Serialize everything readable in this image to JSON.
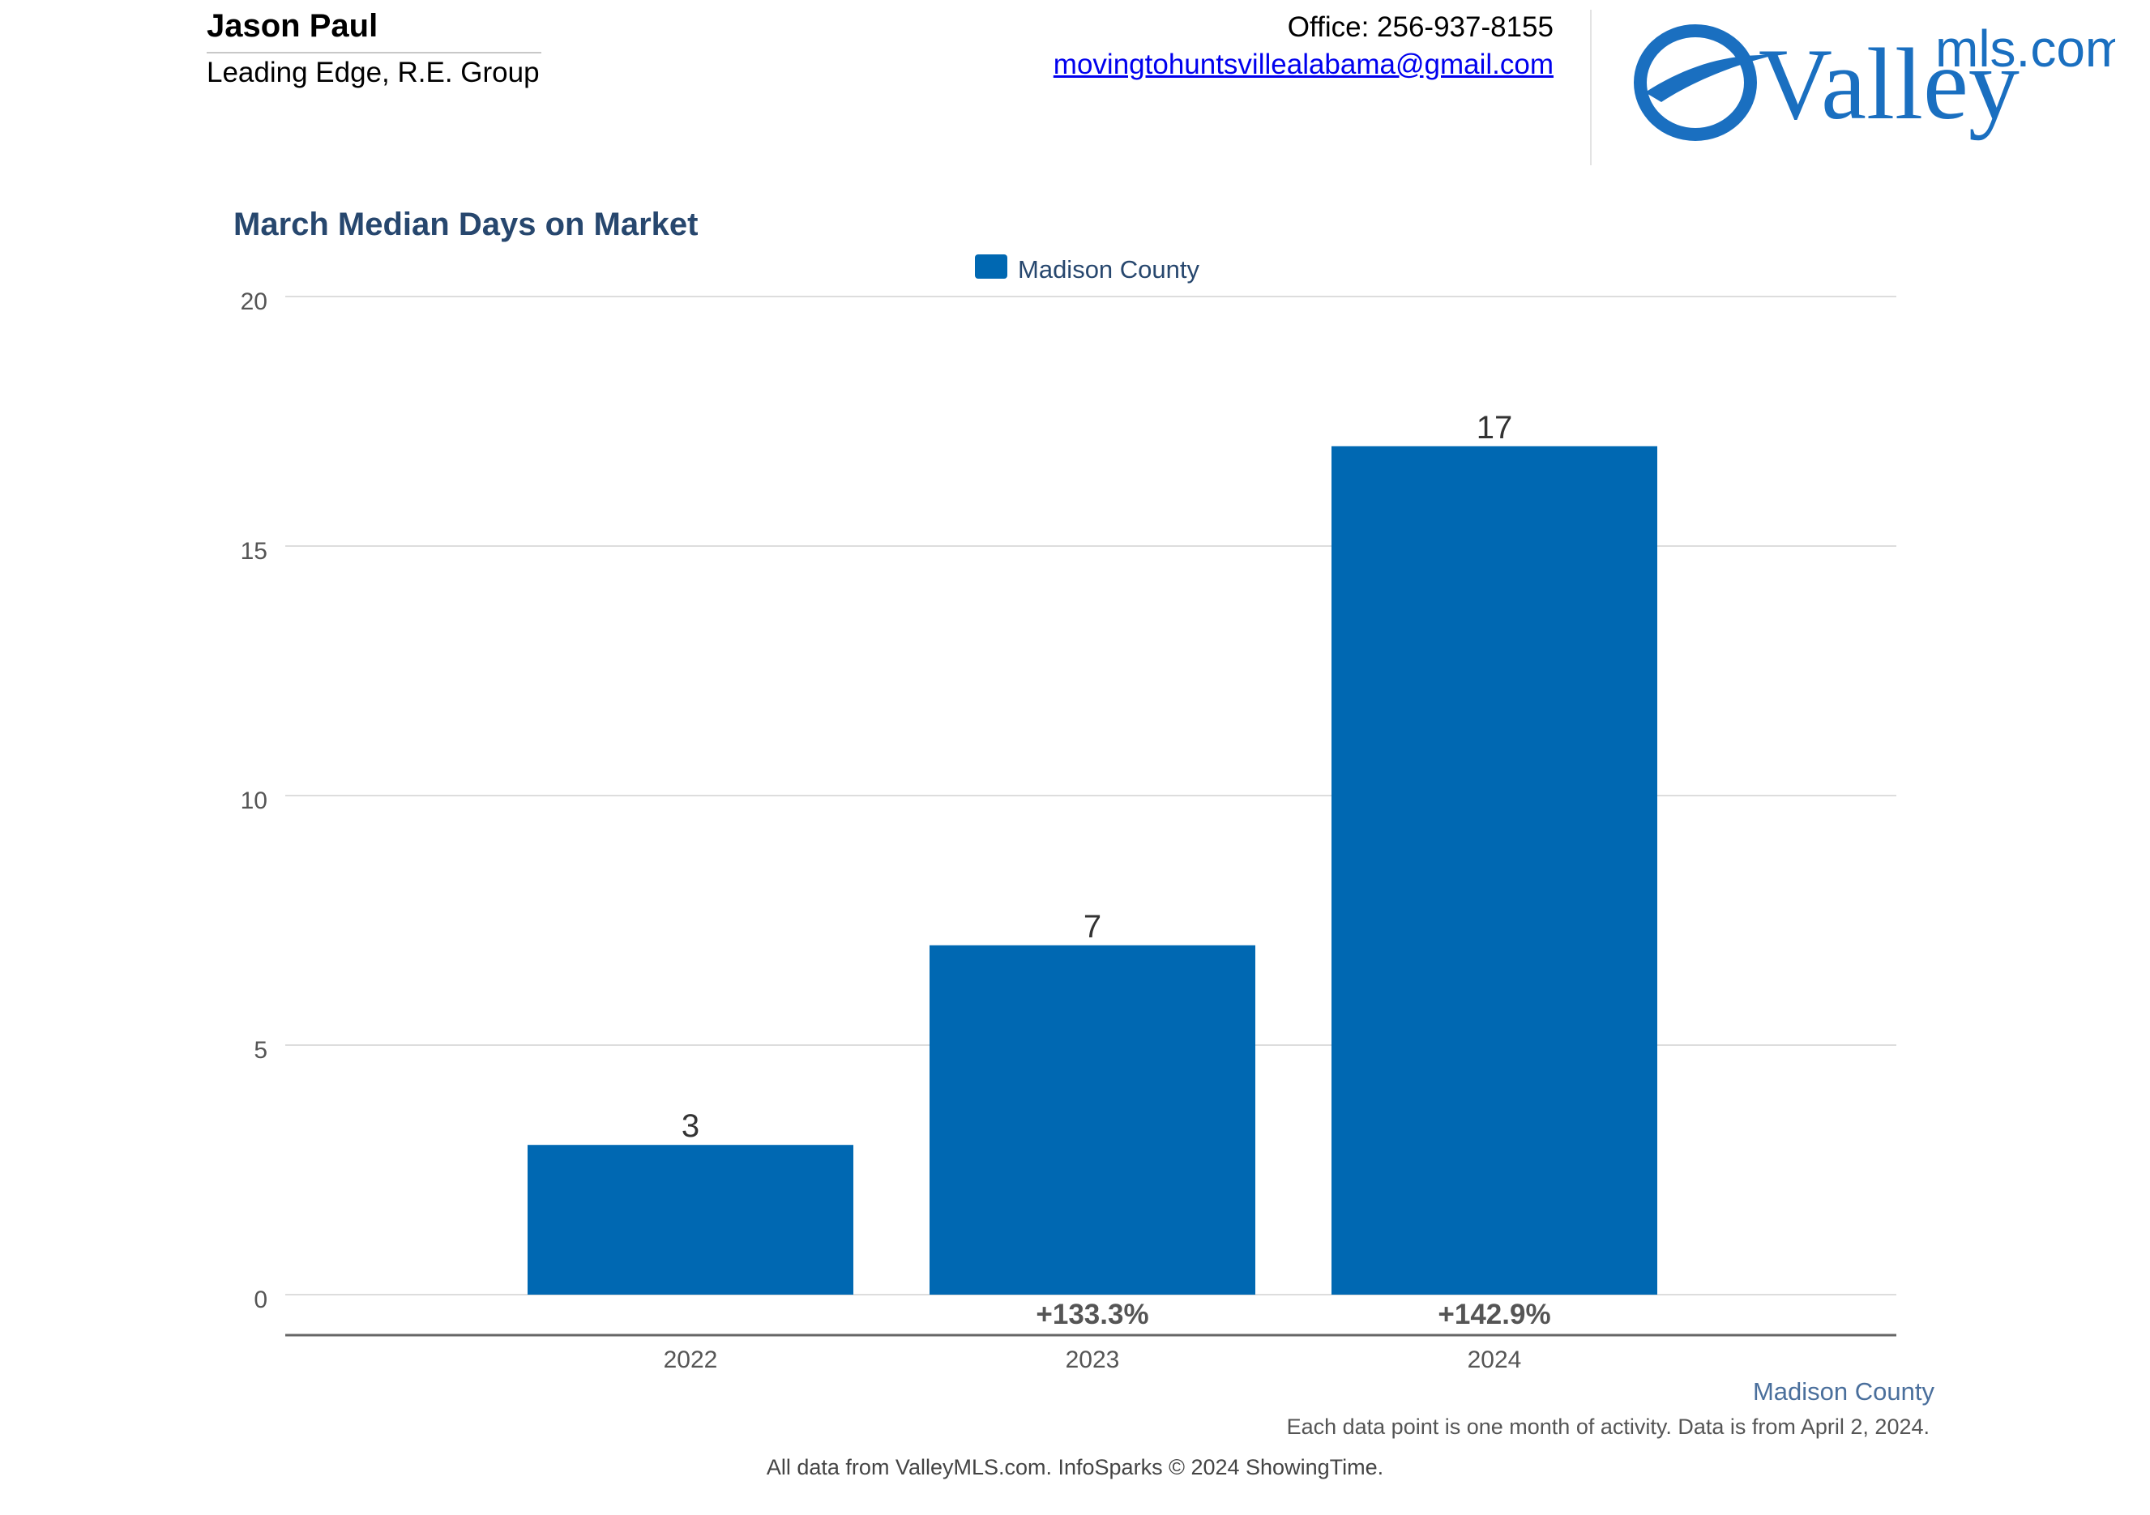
{
  "header": {
    "agent_name": "Jason Paul",
    "office_name": "Leading Edge, R.E. Group",
    "phone": "Office: 256-937-8155",
    "email": "movingtohuntsvillealabama@gmail.com",
    "logo": {
      "word": "Valley",
      "suffix": "mls.com"
    }
  },
  "colors": {
    "bar": "#0068b2",
    "title": "#27476e",
    "accent": "#1a6fc0"
  },
  "chart_data": {
    "type": "bar",
    "title": "March Median Days on Market",
    "categories": [
      "2022",
      "2023",
      "2024"
    ],
    "series": [
      {
        "name": "Madison County",
        "values": [
          3,
          7,
          17
        ]
      }
    ],
    "data_labels": [
      "3",
      "7",
      "17"
    ],
    "change_labels": [
      "",
      "+133.3%",
      "+142.9%"
    ],
    "y_ticks": [
      0,
      5,
      10,
      15,
      20
    ],
    "ylim": [
      0,
      20
    ],
    "grid": true,
    "legend_position": "top-center",
    "xlabel": "",
    "ylabel": ""
  },
  "footer": {
    "series_name": "Madison County",
    "note": "Each data point is one month of activity. Data is from April 2, 2024.",
    "credit": "All data from ValleyMLS.com. InfoSparks © 2024 ShowingTime."
  }
}
